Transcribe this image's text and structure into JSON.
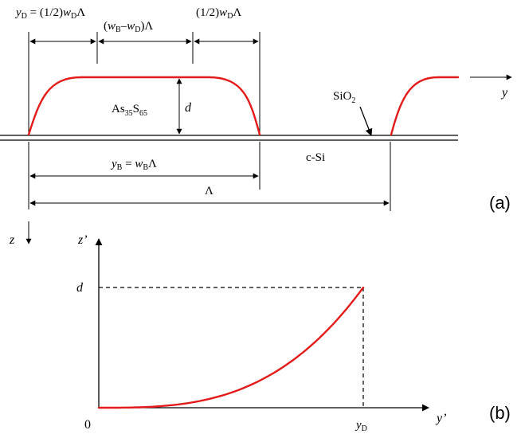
{
  "colors": {
    "profile": "#e31b1b",
    "lines": "#000000"
  },
  "panel_a": {
    "yD_eq": {
      "sym": "y",
      "sub": "D",
      "mid": " = (1/2)",
      "w": "w",
      "wsub": "D",
      "tail": "Λ"
    },
    "wB_minus_wD": {
      "open": "(",
      "w1": "w",
      "sub1": "B",
      "minus": "–",
      "w2": "w",
      "sub2": "D",
      "close": ")Λ"
    },
    "half_wD": {
      "pre": "(1/2)",
      "w": "w",
      "sub": "D",
      "tail": "Λ"
    },
    "material": {
      "base": "As",
      "sub1": "35",
      "mid": "S",
      "sub2": "65"
    },
    "height": "d",
    "oxide": {
      "base": "SiO",
      "sub": "2"
    },
    "substrate": "c-Si",
    "yB_eq": {
      "sym": "y",
      "sub": "B",
      "mid": " = ",
      "w": "w",
      "wsub": "B",
      "tail": "Λ"
    },
    "period": "Λ",
    "y_axis": "y",
    "z_axis": "z",
    "tag": "(a)"
  },
  "panel_b": {
    "vertical_axis": "z’",
    "horizontal_axis": "y’",
    "origin": "0",
    "height_mark": "d",
    "yD_mark": {
      "sym": "y",
      "sub": "D"
    },
    "tag": "(b)",
    "curve": {
      "exponent": 3,
      "x_range": [
        0,
        1
      ],
      "y_range": [
        0,
        1
      ]
    }
  }
}
